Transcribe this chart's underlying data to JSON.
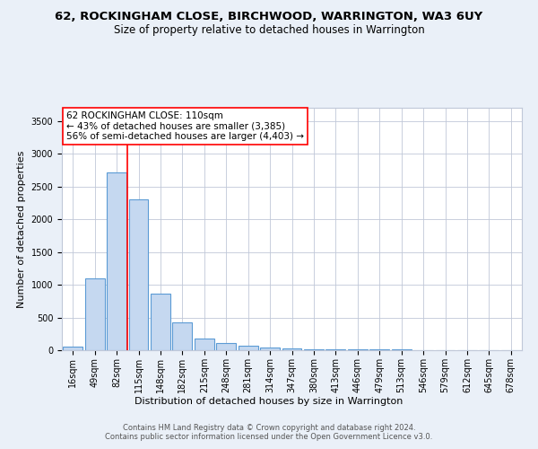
{
  "title1": "62, ROCKINGHAM CLOSE, BIRCHWOOD, WARRINGTON, WA3 6UY",
  "title2": "Size of property relative to detached houses in Warrington",
  "xlabel": "Distribution of detached houses by size in Warrington",
  "ylabel": "Number of detached properties",
  "bar_labels": [
    "16sqm",
    "49sqm",
    "82sqm",
    "115sqm",
    "148sqm",
    "182sqm",
    "215sqm",
    "248sqm",
    "281sqm",
    "314sqm",
    "347sqm",
    "380sqm",
    "413sqm",
    "446sqm",
    "479sqm",
    "513sqm",
    "546sqm",
    "579sqm",
    "612sqm",
    "645sqm",
    "678sqm"
  ],
  "bar_values": [
    55,
    1100,
    2720,
    2300,
    870,
    425,
    185,
    105,
    65,
    45,
    30,
    20,
    20,
    20,
    10,
    8,
    5,
    5,
    3,
    3,
    2
  ],
  "bar_color": "#c5d8f0",
  "bar_edge_color": "#5b9bd5",
  "vline_x_index": 2,
  "vline_color": "red",
  "annotation_text": "62 ROCKINGHAM CLOSE: 110sqm\n← 43% of detached houses are smaller (3,385)\n56% of semi-detached houses are larger (4,403) →",
  "annotation_box_color": "white",
  "annotation_box_edge_color": "red",
  "ylim": [
    0,
    3700
  ],
  "yticks": [
    0,
    500,
    1000,
    1500,
    2000,
    2500,
    3000,
    3500
  ],
  "background_color": "#eaf0f8",
  "plot_background": "white",
  "footer1": "Contains HM Land Registry data © Crown copyright and database right 2024.",
  "footer2": "Contains public sector information licensed under the Open Government Licence v3.0.",
  "title1_fontsize": 9.5,
  "title2_fontsize": 8.5,
  "axis_label_fontsize": 8,
  "tick_fontsize": 7,
  "annotation_fontsize": 7.5,
  "footer_fontsize": 6
}
